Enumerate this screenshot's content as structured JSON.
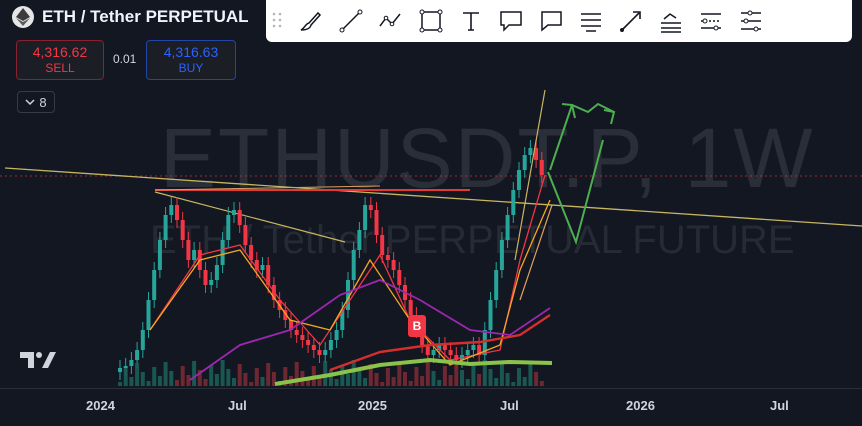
{
  "header": {
    "title": "ETH / Tether PERPETUAL",
    "symbol_icon": "ethereum-icon"
  },
  "trade": {
    "sell_price": "4,316.62",
    "sell_label": "SELL",
    "spread": "0.01",
    "buy_price": "4,316.63",
    "buy_label": "BUY"
  },
  "indicators": {
    "collapse_count": "8",
    "collapse_icon": "chevron-down-icon"
  },
  "watermark": {
    "symbol": "ETHUSDT.P, 1W",
    "description": "ETH / Tether PERPETUAL FUTURE"
  },
  "badge": "B",
  "toolbar": {
    "tools": [
      "brush-icon",
      "trend-line-icon",
      "path-icon",
      "rectangle-icon",
      "text-icon",
      "callout-icon",
      "comment-icon",
      "parallel-channel-icon",
      "arrow-icon",
      "regression-trend-icon",
      "date-range-icon",
      "price-range-icon"
    ]
  },
  "x_axis": {
    "labels": [
      "2024",
      "Jul",
      "2025",
      "Jul",
      "2026",
      "Jul"
    ]
  },
  "colors": {
    "background": "#131722",
    "up": "#26a69a",
    "down": "#f23645",
    "ma_fast": "#f23645",
    "ma_slow": "#f5a623",
    "ma_purple": "#9c27b0",
    "ma_red": "#d32f2f",
    "ma_green": "#8bc34a",
    "projection": "#4caf50"
  }
}
